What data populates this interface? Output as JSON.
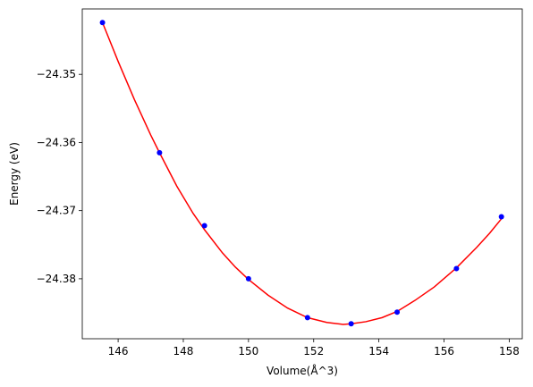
{
  "chart_data": {
    "type": "scatter",
    "title": "",
    "xlabel": "Volume(Å^3)",
    "ylabel": "Energy (eV)",
    "xlim": [
      144.9,
      158.4
    ],
    "ylim": [
      -24.3888,
      -24.3404
    ],
    "xticks": [
      146,
      148,
      150,
      152,
      154,
      156,
      158
    ],
    "xtick_labels": [
      "146",
      "148",
      "150",
      "152",
      "154",
      "156",
      "158"
    ],
    "yticks": [
      -24.35,
      -24.36,
      -24.37,
      -24.38
    ],
    "ytick_labels": [
      "−24.35",
      "−24.36",
      "−24.37",
      "−24.38"
    ],
    "grid": false,
    "legend": "none",
    "series": [
      {
        "kind": "points",
        "color": "#0000ff",
        "x": [
          145.52,
          147.27,
          148.65,
          150.0,
          151.81,
          153.15,
          154.56,
          156.38,
          157.76
        ],
        "y": [
          -24.3424,
          -24.3615,
          -24.3722,
          -24.38,
          -24.3857,
          -24.3866,
          -24.3849,
          -24.3785,
          -24.3709
        ]
      },
      {
        "kind": "fit-curve",
        "color": "#ff0000",
        "x": [
          145.52,
          146.0,
          146.5,
          147.0,
          147.27,
          147.8,
          148.3,
          148.65,
          149.2,
          149.6,
          150.0,
          150.6,
          151.2,
          151.81,
          152.4,
          152.9,
          153.15,
          153.6,
          154.1,
          154.56,
          155.1,
          155.7,
          156.38,
          157.0,
          157.4,
          157.76
        ],
        "y": [
          -24.3424,
          -24.3481,
          -24.3537,
          -24.3589,
          -24.3615,
          -24.3664,
          -24.3704,
          -24.3728,
          -24.3762,
          -24.3783,
          -24.3801,
          -24.3824,
          -24.3843,
          -24.3857,
          -24.3864,
          -24.3867,
          -24.3866,
          -24.3863,
          -24.3857,
          -24.3848,
          -24.3832,
          -24.3812,
          -24.3784,
          -24.3754,
          -24.3733,
          -24.3712
        ]
      }
    ]
  }
}
